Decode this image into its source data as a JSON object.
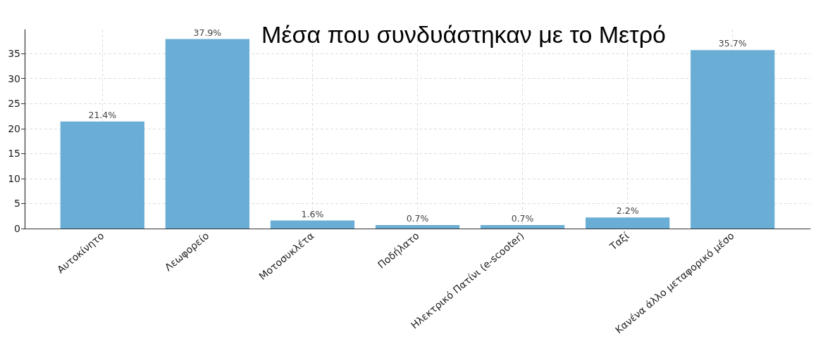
{
  "chart_data": {
    "type": "bar",
    "title": "Μέσα που συνδυάστηκαν με το Μετρό",
    "categories": [
      "Αυτοκίνητο",
      "Λεωφορείο",
      "Μοτοσυκλέτα",
      "Ποδήλατο",
      "Ηλεκτρικό Πατίνι (e-scooter)",
      "Ταξί",
      "Κανένα άλλο μεταφορικό μέσο"
    ],
    "values": [
      21.4,
      37.9,
      1.6,
      0.7,
      0.7,
      2.2,
      35.7
    ],
    "value_labels": [
      "21.4%",
      "37.9%",
      "1.6%",
      "0.7%",
      "0.7%",
      "2.2%",
      "35.7%"
    ],
    "color": "#6aaed6",
    "ylim": [
      0,
      39.8
    ],
    "yticks": [
      0,
      5,
      10,
      15,
      20,
      25,
      30,
      35
    ],
    "grid": true
  }
}
